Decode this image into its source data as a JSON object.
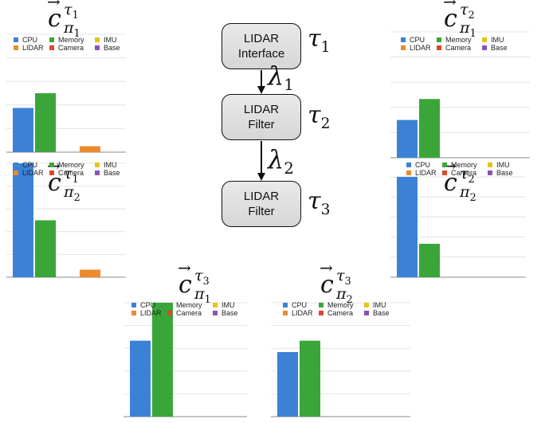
{
  "pipeline": {
    "nodes": [
      {
        "line1": "LIDAR",
        "line2": "Interface",
        "task": "τ",
        "task_sub": "1"
      },
      {
        "line1": "LIDAR",
        "line2": "Filter",
        "task": "τ",
        "task_sub": "2"
      },
      {
        "line1": "LIDAR",
        "line2": "Filter",
        "task": "τ",
        "task_sub": "3"
      }
    ],
    "edges": [
      {
        "symbol": "λ",
        "sub": "1"
      },
      {
        "symbol": "λ",
        "sub": "2"
      }
    ]
  },
  "legend": [
    {
      "name": "CPU",
      "color": "#3b82d6"
    },
    {
      "name": "Memory",
      "color": "#3aa63a"
    },
    {
      "name": "IMU",
      "color": "#e8c317"
    },
    {
      "name": "LIDAR",
      "color": "#ec8a2c"
    },
    {
      "name": "Camera",
      "color": "#e0462a"
    },
    {
      "name": "Base",
      "color": "#8a52b8"
    }
  ],
  "chart_data": [
    {
      "type": "bar",
      "label": {
        "c": "c",
        "tau_sub": "1",
        "pi_sub": "1"
      },
      "categories": [
        "CPU",
        "Memory",
        "IMU",
        "LIDAR",
        "Camera",
        "Base"
      ],
      "values": [
        1.5,
        2.0,
        0,
        0.2,
        0,
        0
      ],
      "ylim": [
        0,
        4
      ],
      "grid": true
    },
    {
      "type": "bar",
      "label": {
        "c": "c",
        "tau_sub": "2",
        "pi_sub": "1"
      },
      "categories": [
        "CPU",
        "Memory",
        "IMU",
        "LIDAR",
        "Camera",
        "Base"
      ],
      "values": [
        0.9,
        1.4,
        0,
        0,
        0,
        0
      ],
      "ylim": [
        0,
        3
      ],
      "grid": true
    },
    {
      "type": "bar",
      "label": {
        "c": "c",
        "tau_sub": "1",
        "pi_sub": "2"
      },
      "categories": [
        "CPU",
        "Memory",
        "IMU",
        "LIDAR",
        "Camera",
        "Base"
      ],
      "values": [
        3.0,
        1.5,
        0,
        0.2,
        0,
        0
      ],
      "ylim": [
        0,
        3
      ],
      "grid": true
    },
    {
      "type": "bar",
      "label": {
        "c": "c",
        "tau_sub": "2",
        "pi_sub": "2"
      },
      "categories": [
        "CPU",
        "Memory",
        "IMU",
        "LIDAR",
        "Camera",
        "Base"
      ],
      "values": [
        3.0,
        1.0,
        0,
        0,
        0,
        0
      ],
      "ylim": [
        0,
        3
      ],
      "grid": true
    },
    {
      "type": "bar",
      "label": {
        "c": "c",
        "tau_sub": "3",
        "pi_sub": "1"
      },
      "categories": [
        "CPU",
        "Memory",
        "IMU",
        "LIDAR",
        "Camera",
        "Base"
      ],
      "values": [
        2.0,
        3.0,
        0,
        0,
        0,
        0
      ],
      "ylim": [
        0,
        3
      ],
      "grid": true
    },
    {
      "type": "bar",
      "label": {
        "c": "c",
        "tau_sub": "3",
        "pi_sub": "2"
      },
      "categories": [
        "CPU",
        "Memory",
        "IMU",
        "LIDAR",
        "Camera",
        "Base"
      ],
      "values": [
        1.7,
        2.0,
        0,
        0,
        0,
        0
      ],
      "ylim": [
        0,
        3
      ],
      "grid": true
    }
  ]
}
